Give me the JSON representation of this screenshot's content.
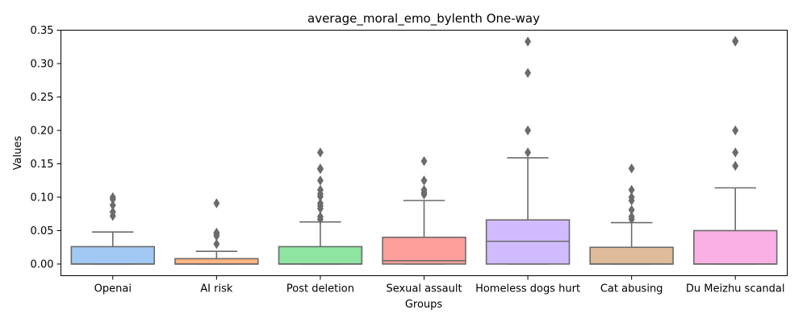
{
  "chart_data": {
    "type": "box",
    "title": "average_moral_emo_bylenth One-way",
    "xlabel": "Groups",
    "ylabel": "Values",
    "ylim": [
      -0.0175,
      0.35
    ],
    "yticks": [
      0.0,
      0.05,
      0.1,
      0.15,
      0.2,
      0.25,
      0.3,
      0.35
    ],
    "ytick_labels": [
      "0.00",
      "0.05",
      "0.10",
      "0.15",
      "0.20",
      "0.25",
      "0.30",
      "0.35"
    ],
    "grid": false,
    "categories": [
      "Openai",
      "AI risk",
      "Post deletion",
      "Sexual assault",
      "Homeless dogs hurt",
      "Cat abusing",
      "Du Meizhu scandal"
    ],
    "boxes": [
      {
        "min": 0,
        "q1": 0,
        "median": 0,
        "q3": 0.026,
        "max": 0.048,
        "outliers": [
          0.072,
          0.078,
          0.088,
          0.097,
          0.1
        ],
        "color": "#a1c9f4"
      },
      {
        "min": 0,
        "q1": 0,
        "median": 0,
        "q3": 0.008,
        "max": 0.019,
        "outliers": [
          0.03,
          0.042,
          0.045,
          0.047,
          0.091
        ],
        "color": "#ffb482"
      },
      {
        "min": 0,
        "q1": 0,
        "median": 0,
        "q3": 0.026,
        "max": 0.063,
        "outliers": [
          0.067,
          0.071,
          0.083,
          0.087,
          0.091,
          0.101,
          0.105,
          0.111,
          0.125,
          0.142,
          0.143,
          0.167
        ],
        "color": "#8de5a1"
      },
      {
        "min": 0,
        "q1": 0,
        "median": 0.005,
        "q3": 0.04,
        "max": 0.095,
        "outliers": [
          0.104,
          0.107,
          0.111,
          0.125,
          0.154
        ],
        "color": "#ff9f9b"
      },
      {
        "min": 0,
        "q1": 0,
        "median": 0.034,
        "q3": 0.066,
        "max": 0.159,
        "outliers": [
          0.167,
          0.2,
          0.286,
          0.333
        ],
        "color": "#d0bbff"
      },
      {
        "min": 0,
        "q1": 0,
        "median": 0,
        "q3": 0.025,
        "max": 0.062,
        "outliers": [
          0.067,
          0.071,
          0.081,
          0.095,
          0.1,
          0.111,
          0.143
        ],
        "color": "#debb9b"
      },
      {
        "min": 0,
        "q1": 0,
        "median": 0,
        "q3": 0.05,
        "max": 0.114,
        "outliers": [
          0.147,
          0.167,
          0.2,
          0.333,
          0.334
        ],
        "color": "#fab0e4"
      }
    ]
  }
}
